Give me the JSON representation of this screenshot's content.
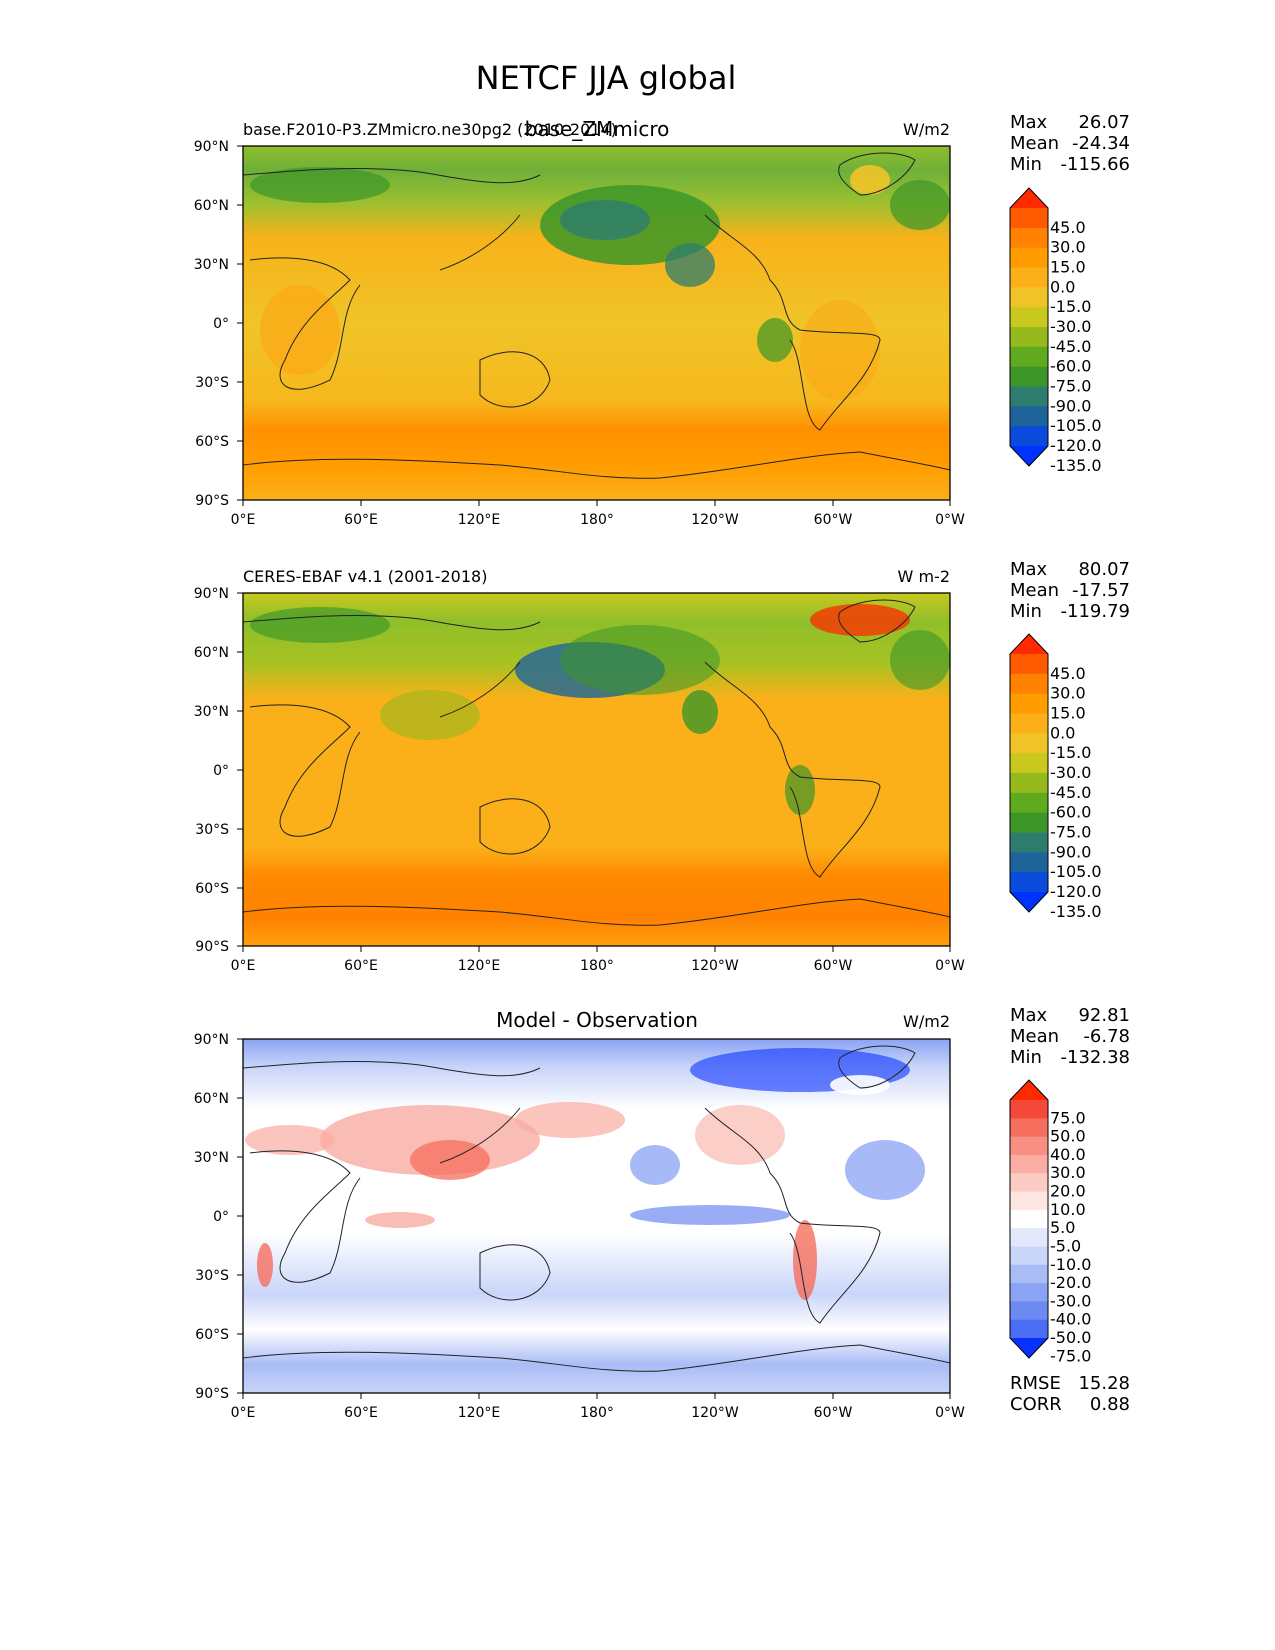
{
  "figure": {
    "title": "NETCF JJA global"
  },
  "xticks": [
    "0°E",
    "60°E",
    "120°E",
    "180°",
    "120°W",
    "60°W",
    "0°W"
  ],
  "yticks": [
    "90°N",
    "60°N",
    "30°N",
    "0°",
    "30°S",
    "60°S",
    "90°S"
  ],
  "chart_data": [
    {
      "type": "heatmap",
      "title": "base_ZMmicro",
      "left_label": "base.F2010-P3.ZMmicro.ne30pg2 (2010-2014)",
      "units": "W/m2",
      "stats": {
        "Max": "26.07",
        "Mean": "-24.34",
        "Min": "-115.66"
      },
      "colorbar": {
        "ticks": [
          "45.0",
          "30.0",
          "15.0",
          "0.0",
          "-15.0",
          "-30.0",
          "-45.0",
          "-60.0",
          "-75.0",
          "-90.0",
          "-105.0",
          "-120.0",
          "-135.0"
        ],
        "colors": [
          "#ff2a00",
          "#ff5a00",
          "#ff8200",
          "#ff9c00",
          "#fbb019",
          "#f0c428",
          "#c8c81e",
          "#96b91e",
          "#5faa1e",
          "#3c9628",
          "#2d7d6e",
          "#1e649b",
          "#0a4bdc",
          "#0032ff"
        ]
      },
      "xlim": [
        0,
        360
      ],
      "ylim": [
        -90,
        90
      ]
    },
    {
      "type": "heatmap",
      "title": "",
      "left_label": "CERES-EBAF v4.1 (2001-2018)",
      "units": "W m-2",
      "stats": {
        "Max": "80.07",
        "Mean": "-17.57",
        "Min": "-119.79"
      },
      "colorbar": {
        "ticks": [
          "45.0",
          "30.0",
          "15.0",
          "0.0",
          "-15.0",
          "-30.0",
          "-45.0",
          "-60.0",
          "-75.0",
          "-90.0",
          "-105.0",
          "-120.0",
          "-135.0"
        ],
        "colors": [
          "#ff2a00",
          "#ff5a00",
          "#ff8200",
          "#ff9c00",
          "#fbb019",
          "#f0c428",
          "#c8c81e",
          "#96b91e",
          "#5faa1e",
          "#3c9628",
          "#2d7d6e",
          "#1e649b",
          "#0a4bdc",
          "#0032ff"
        ]
      },
      "xlim": [
        0,
        360
      ],
      "ylim": [
        -90,
        90
      ]
    },
    {
      "type": "heatmap",
      "title": "Model - Observation",
      "left_label": "",
      "units": "W/m2",
      "stats": {
        "Max": "92.81",
        "Mean": "-6.78",
        "Min": "-132.38"
      },
      "extra_stats": {
        "RMSE": "15.28",
        "CORR": "0.88"
      },
      "colorbar": {
        "ticks": [
          "75.0",
          "50.0",
          "40.0",
          "30.0",
          "20.0",
          "10.0",
          "5.0",
          "-5.0",
          "-10.0",
          "-20.0",
          "-30.0",
          "-40.0",
          "-50.0",
          "-75.0"
        ],
        "colors": [
          "#ff2a00",
          "#f54a3a",
          "#f56e5e",
          "#f78f82",
          "#f9ada3",
          "#fbcbc4",
          "#fde6e2",
          "#ffffff",
          "#e3e9fb",
          "#c9d5f9",
          "#a9bcf6",
          "#8aa3f4",
          "#6d8af2",
          "#4b6ef5",
          "#0a32ff"
        ]
      },
      "xlim": [
        0,
        360
      ],
      "ylim": [
        -90,
        90
      ]
    }
  ]
}
